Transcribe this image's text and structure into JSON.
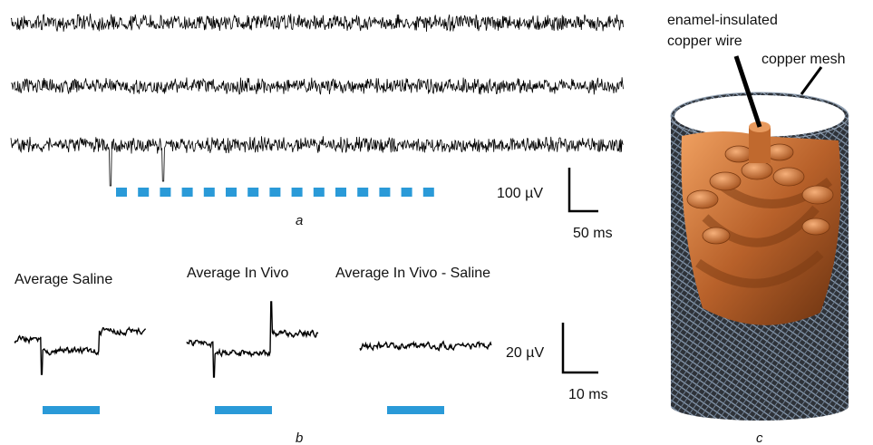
{
  "panel_a": {
    "label": "a",
    "scale_voltage": "100 µV",
    "scale_time": "50 ms"
  },
  "panel_b": {
    "label": "b",
    "titles": [
      "Average Saline",
      "Average In Vivo",
      "Average In Vivo - Saline"
    ],
    "scale_voltage": "20 µV",
    "scale_time": "10 ms"
  },
  "panel_c": {
    "label": "c",
    "wire_label": [
      "enamel-insulated",
      "copper wire"
    ],
    "mesh_label": "copper mesh"
  }
}
